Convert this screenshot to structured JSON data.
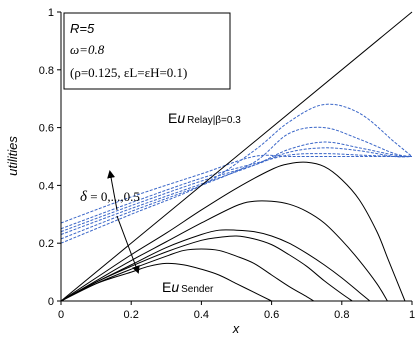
{
  "chart_data": {
    "type": "line",
    "xlabel": "x",
    "ylabel": "utilities",
    "xlim": [
      0,
      1
    ],
    "ylim": [
      0,
      1
    ],
    "x_ticks": [
      "0",
      "0.2",
      "0.4",
      "0.6",
      "0.8",
      "1"
    ],
    "y_ticks": [
      "0",
      "0.2",
      "0.4",
      "0.6",
      "0.8",
      "1"
    ],
    "grid": false,
    "parameters": {
      "line1": "R=5",
      "line2": "ω=0.8",
      "line3": "(ρ=0.125, εL=εH=0.1)"
    },
    "annotations": {
      "relay": {
        "prefix": "E",
        "var": "u",
        "sub": "Relay|β=0.3"
      },
      "sender": {
        "prefix": "E",
        "var": "u",
        "sub": "Sender"
      },
      "delta": {
        "symbol": "δ",
        "text": " = 0,...,0.5"
      }
    },
    "reference_line": {
      "x": [
        0,
        1
      ],
      "y": [
        0,
        1
      ]
    },
    "relay_series": [
      {
        "x": [
          0,
          0.2,
          0.4,
          0.55,
          0.65,
          0.75,
          0.85,
          0.95,
          1.0
        ],
        "y": [
          0.27,
          0.36,
          0.44,
          0.5,
          0.5,
          0.5,
          0.5,
          0.5,
          0.5
        ]
      },
      {
        "x": [
          0,
          0.2,
          0.4,
          0.55,
          0.65,
          0.75,
          0.85,
          0.95,
          1.0
        ],
        "y": [
          0.25,
          0.34,
          0.425,
          0.475,
          0.505,
          0.51,
          0.505,
          0.5,
          0.5
        ]
      },
      {
        "x": [
          0,
          0.2,
          0.4,
          0.55,
          0.65,
          0.75,
          0.85,
          0.95,
          1.0
        ],
        "y": [
          0.24,
          0.33,
          0.415,
          0.47,
          0.515,
          0.53,
          0.52,
          0.5,
          0.5
        ]
      },
      {
        "x": [
          0,
          0.2,
          0.4,
          0.55,
          0.65,
          0.75,
          0.85,
          0.95,
          1.0
        ],
        "y": [
          0.23,
          0.32,
          0.405,
          0.47,
          0.525,
          0.55,
          0.53,
          0.505,
          0.5
        ]
      },
      {
        "x": [
          0,
          0.2,
          0.4,
          0.55,
          0.65,
          0.75,
          0.85,
          0.95,
          1.0
        ],
        "y": [
          0.215,
          0.31,
          0.4,
          0.48,
          0.58,
          0.6,
          0.56,
          0.51,
          0.5
        ]
      },
      {
        "x": [
          0,
          0.2,
          0.4,
          0.55,
          0.65,
          0.75,
          0.85,
          0.95,
          1.0
        ],
        "y": [
          0.2,
          0.3,
          0.4,
          0.52,
          0.62,
          0.68,
          0.65,
          0.55,
          0.5
        ]
      }
    ],
    "sender_series": [
      {
        "x": [
          0,
          0.1,
          0.2,
          0.25,
          0.3,
          0.35,
          0.4,
          0.45,
          0.5,
          0.55,
          0.6
        ],
        "y": [
          0,
          0.06,
          0.1,
          0.12,
          0.13,
          0.125,
          0.11,
          0.09,
          0.06,
          0.03,
          0.0
        ]
      },
      {
        "x": [
          0,
          0.1,
          0.2,
          0.3,
          0.35,
          0.4,
          0.45,
          0.5,
          0.55,
          0.6,
          0.65,
          0.7,
          0.72
        ],
        "y": [
          0,
          0.06,
          0.11,
          0.155,
          0.175,
          0.18,
          0.175,
          0.155,
          0.13,
          0.09,
          0.05,
          0.015,
          0.0
        ]
      },
      {
        "x": [
          0,
          0.1,
          0.2,
          0.3,
          0.4,
          0.45,
          0.5,
          0.55,
          0.6,
          0.65,
          0.7,
          0.75,
          0.8,
          0.83
        ],
        "y": [
          0,
          0.065,
          0.12,
          0.17,
          0.21,
          0.22,
          0.225,
          0.215,
          0.195,
          0.16,
          0.12,
          0.07,
          0.025,
          0.0
        ]
      },
      {
        "x": [
          0,
          0.1,
          0.2,
          0.3,
          0.4,
          0.45,
          0.5,
          0.55,
          0.6,
          0.65,
          0.7,
          0.75,
          0.8,
          0.85,
          0.88
        ],
        "y": [
          0,
          0.065,
          0.125,
          0.185,
          0.23,
          0.245,
          0.245,
          0.24,
          0.225,
          0.2,
          0.165,
          0.125,
          0.08,
          0.03,
          0.0
        ]
      },
      {
        "x": [
          0,
          0.1,
          0.2,
          0.3,
          0.4,
          0.5,
          0.55,
          0.6,
          0.65,
          0.7,
          0.75,
          0.8,
          0.85,
          0.9,
          0.93
        ],
        "y": [
          0,
          0.07,
          0.14,
          0.205,
          0.27,
          0.33,
          0.345,
          0.345,
          0.335,
          0.31,
          0.27,
          0.21,
          0.14,
          0.06,
          0.0
        ]
      },
      {
        "x": [
          0,
          0.1,
          0.2,
          0.3,
          0.4,
          0.5,
          0.6,
          0.65,
          0.7,
          0.75,
          0.8,
          0.85,
          0.9,
          0.93,
          0.96,
          0.98
        ],
        "y": [
          0,
          0.08,
          0.16,
          0.235,
          0.315,
          0.39,
          0.455,
          0.475,
          0.48,
          0.465,
          0.42,
          0.35,
          0.24,
          0.15,
          0.06,
          0.0
        ]
      }
    ],
    "colors": {
      "relay": "#3a66c8",
      "sender": "#000000",
      "reference": "#000000",
      "axis": "#000000"
    }
  }
}
